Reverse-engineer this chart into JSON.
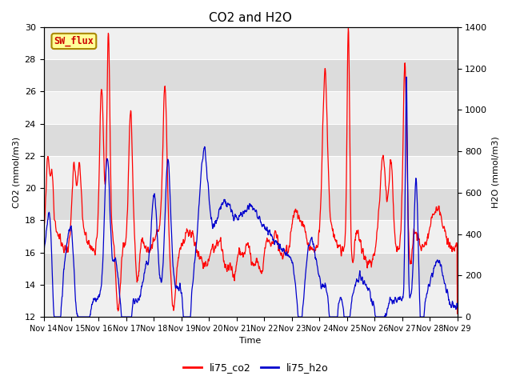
{
  "title": "CO2 and H2O",
  "xlabel": "Time",
  "ylabel_left": "CO2 (mmol/m3)",
  "ylabel_right": "H2O (mmol/m3)",
  "ylim_left": [
    12,
    30
  ],
  "ylim_right": [
    0,
    1400
  ],
  "yticks_left": [
    12,
    14,
    16,
    18,
    20,
    22,
    24,
    26,
    28,
    30
  ],
  "yticks_right": [
    0,
    200,
    400,
    600,
    800,
    1000,
    1200,
    1400
  ],
  "x_tick_labels": [
    "Nov 14",
    "Nov 15",
    "Nov 16",
    "Nov 17",
    "Nov 18",
    "Nov 19",
    "Nov 20",
    "Nov 21",
    "Nov 22",
    "Nov 23",
    "Nov 24",
    "Nov 25",
    "Nov 26",
    "Nov 27",
    "Nov 28",
    "Nov 29"
  ],
  "color_co2": "#FF0000",
  "color_h2o": "#0000CC",
  "legend_label_co2": "li75_co2",
  "legend_label_h2o": "li75_h2o",
  "sw_flux_label": "SW_flux",
  "sw_flux_bg": "#FFFF99",
  "sw_flux_border": "#AA8800",
  "sw_flux_text_color": "#CC0000",
  "background_color": "#FFFFFF",
  "plot_bg_color": "#DCDCDC",
  "stripe_light": "#F0F0F0",
  "grid_color": "#FFFFFF",
  "title_fontsize": 11,
  "axis_fontsize": 8,
  "tick_fontsize": 8,
  "legend_fontsize": 9
}
